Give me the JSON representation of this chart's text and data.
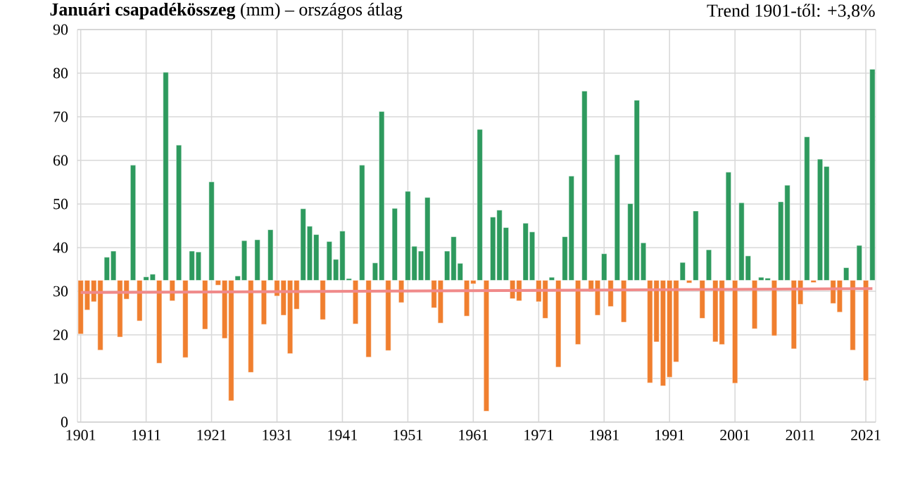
{
  "chart_data": {
    "type": "bar",
    "title": "**Januári csapadékösszeg** (mm) – országos átlag",
    "annotations": [
      "Trend 1901-től: +3,8%"
    ],
    "x": [
      1901,
      1902,
      1903,
      1904,
      1905,
      1906,
      1907,
      1908,
      1909,
      1910,
      1911,
      1912,
      1913,
      1914,
      1915,
      1916,
      1917,
      1918,
      1919,
      1920,
      1921,
      1922,
      1923,
      1924,
      1925,
      1926,
      1927,
      1928,
      1929,
      1930,
      1931,
      1932,
      1933,
      1934,
      1935,
      1936,
      1937,
      1938,
      1939,
      1940,
      1941,
      1942,
      1943,
      1944,
      1945,
      1946,
      1947,
      1948,
      1949,
      1950,
      1951,
      1952,
      1953,
      1954,
      1955,
      1956,
      1957,
      1958,
      1959,
      1960,
      1961,
      1962,
      1963,
      1964,
      1965,
      1966,
      1967,
      1968,
      1969,
      1970,
      1971,
      1972,
      1973,
      1974,
      1975,
      1976,
      1977,
      1978,
      1979,
      1980,
      1981,
      1982,
      1983,
      1984,
      1985,
      1986,
      1987,
      1988,
      1989,
      1990,
      1991,
      1992,
      1993,
      1994,
      1995,
      1996,
      1997,
      1998,
      1999,
      2000,
      2001,
      2002,
      2003,
      2004,
      2005,
      2006,
      2007,
      2008,
      2009,
      2010,
      2011,
      2012,
      2013,
      2014,
      2015,
      2016,
      2017,
      2018,
      2019,
      2020,
      2021,
      2022
    ],
    "series": [
      {
        "base": [
          32.5,
          32.5,
          32.5,
          32.5,
          32.5,
          32.5,
          32.5,
          32.5,
          32.5,
          32.5,
          32.5,
          32.5,
          32.5,
          32.5,
          32.5,
          32.5,
          32.5,
          32.5,
          32.5,
          32.5,
          32.5,
          32.5,
          32.5,
          32.5,
          32.5,
          32.5,
          32.5,
          32.5,
          32.5,
          32.5,
          32.5,
          32.5,
          32.5,
          32.5,
          32.5,
          32.5,
          32.5,
          32.5,
          32.5,
          32.5,
          32.5,
          32.5,
          32.5,
          32.5,
          32.5,
          32.5,
          32.5,
          32.5,
          32.5,
          32.5,
          32.5,
          32.5,
          32.5,
          32.5,
          32.5,
          32.5,
          32.5,
          32.5,
          32.5,
          32.5,
          32.5,
          32.5,
          32.5,
          32.5,
          32.5,
          32.5,
          32.5,
          32.5,
          32.5,
          32.5,
          32.5,
          32.5,
          32.5,
          32.5,
          32.5,
          32.5,
          32.5,
          32.5,
          32.5,
          32.5,
          32.5,
          32.5,
          32.5,
          32.5,
          32.5,
          32.5,
          32.5,
          32.5,
          32.5,
          32.5,
          32.5,
          32.5,
          32.5,
          32.5,
          32.5,
          32.5,
          32.5,
          32.5,
          32.5,
          32.5,
          32.5,
          32.5,
          32.5,
          32.5,
          32.5,
          32.5,
          32.5,
          32.5,
          32.5,
          32.5,
          32.5,
          32.5,
          32.5,
          32.5,
          32.5,
          32.5,
          32.5,
          32.5,
          32.5,
          32.5,
          32.5,
          32.5
        ],
        "values": [
          -12.3,
          -6.8,
          -4.9,
          -16.0,
          5.3,
          6.7,
          -13.0,
          -4.3,
          26.4,
          -9.3,
          0.8,
          1.4,
          -19.0,
          47.7,
          -4.7,
          31.0,
          -17.7,
          6.7,
          6.5,
          -11.2,
          22.6,
          -1.1,
          -13.3,
          -27.6,
          1.0,
          9.1,
          -21.1,
          9.3,
          -10.1,
          11.6,
          -3.6,
          -8.0,
          -16.8,
          -6.6,
          16.4,
          12.4,
          10.5,
          -9.0,
          8.9,
          4.8,
          11.3,
          0.4,
          -10.0,
          26.4,
          -17.6,
          4.0,
          38.7,
          -16.1,
          16.5,
          -5.1,
          20.4,
          7.8,
          6.7,
          19.0,
          -6.3,
          -9.8,
          6.7,
          10.0,
          3.9,
          -8.2,
          -0.8,
          34.6,
          -30.0,
          14.5,
          16.1,
          12.1,
          -4.2,
          -4.7,
          13.1,
          11.1,
          -4.9,
          -8.7,
          0.7,
          -19.9,
          10.0,
          23.9,
          -14.7,
          43.4,
          -2.6,
          -8.0,
          6.1,
          -6.0,
          28.8,
          -9.6,
          17.6,
          41.3,
          8.6,
          -23.5,
          -14.1,
          -24.2,
          -22.2,
          -18.7,
          4.1,
          -0.6,
          15.9,
          -8.7,
          7.0,
          -14.1,
          -14.7,
          24.8,
          -23.6,
          17.8,
          5.6,
          -11.1,
          0.7,
          0.5,
          -12.7,
          18.0,
          21.8,
          -15.7,
          -5.5,
          32.9,
          -0.5,
          27.8,
          26.1,
          -5.3,
          -7.3,
          2.9,
          -16.0,
          8.0,
          -23.0,
          48.4
        ],
        "colors": [
          "#f07f2f",
          "#f07f2f",
          "#f07f2f",
          "#f07f2f",
          "#2e9a5e",
          "#2e9a5e",
          "#f07f2f",
          "#f07f2f",
          "#2e9a5e",
          "#f07f2f",
          "#2e9a5e",
          "#2e9a5e",
          "#f07f2f",
          "#2e9a5e",
          "#f07f2f",
          "#2e9a5e",
          "#f07f2f",
          "#2e9a5e",
          "#2e9a5e",
          "#f07f2f",
          "#2e9a5e",
          "#f07f2f",
          "#f07f2f",
          "#f07f2f",
          "#2e9a5e",
          "#2e9a5e",
          "#f07f2f",
          "#2e9a5e",
          "#f07f2f",
          "#2e9a5e",
          "#f07f2f",
          "#f07f2f",
          "#f07f2f",
          "#f07f2f",
          "#2e9a5e",
          "#2e9a5e",
          "#2e9a5e",
          "#f07f2f",
          "#2e9a5e",
          "#2e9a5e",
          "#2e9a5e",
          "#2e9a5e",
          "#f07f2f",
          "#2e9a5e",
          "#f07f2f",
          "#2e9a5e",
          "#2e9a5e",
          "#f07f2f",
          "#2e9a5e",
          "#f07f2f",
          "#2e9a5e",
          "#2e9a5e",
          "#2e9a5e",
          "#2e9a5e",
          "#f07f2f",
          "#f07f2f",
          "#2e9a5e",
          "#2e9a5e",
          "#2e9a5e",
          "#f07f2f",
          "#f07f2f",
          "#2e9a5e",
          "#f07f2f",
          "#2e9a5e",
          "#2e9a5e",
          "#2e9a5e",
          "#f07f2f",
          "#f07f2f",
          "#2e9a5e",
          "#2e9a5e",
          "#f07f2f",
          "#f07f2f",
          "#2e9a5e",
          "#f07f2f",
          "#2e9a5e",
          "#2e9a5e",
          "#f07f2f",
          "#2e9a5e",
          "#f07f2f",
          "#f07f2f",
          "#2e9a5e",
          "#f07f2f",
          "#2e9a5e",
          "#f07f2f",
          "#2e9a5e",
          "#2e9a5e",
          "#2e9a5e",
          "#f07f2f",
          "#f07f2f",
          "#f07f2f",
          "#f07f2f",
          "#f07f2f",
          "#2e9a5e",
          "#f07f2f",
          "#2e9a5e",
          "#f07f2f",
          "#2e9a5e",
          "#f07f2f",
          "#f07f2f",
          "#2e9a5e",
          "#f07f2f",
          "#2e9a5e",
          "#2e9a5e",
          "#f07f2f",
          "#2e9a5e",
          "#2e9a5e",
          "#f07f2f",
          "#2e9a5e",
          "#2e9a5e",
          "#f07f2f",
          "#f07f2f",
          "#2e9a5e",
          "#f07f2f",
          "#2e9a5e",
          "#2e9a5e",
          "#f07f2f",
          "#f07f2f",
          "#2e9a5e",
          "#f07f2f",
          "#2e9a5e",
          "#f07f2f",
          "#2e9a5e"
        ]
      },
      {
        "type": "line",
        "x": [
          1901,
          2022
        ],
        "values": [
          29.7,
          30.6
        ],
        "color": "#f08a8a"
      }
    ],
    "xlim": [
      1900.5,
      2022.5
    ],
    "xticks": [
      1901,
      1911,
      1921,
      1931,
      1941,
      1951,
      1961,
      1971,
      1981,
      1991,
      2001,
      2011,
      2021
    ],
    "ylim": [
      0,
      90
    ],
    "yticks": [
      0,
      10,
      20,
      30,
      40,
      50,
      60,
      70,
      80,
      90
    ],
    "grid": true
  }
}
